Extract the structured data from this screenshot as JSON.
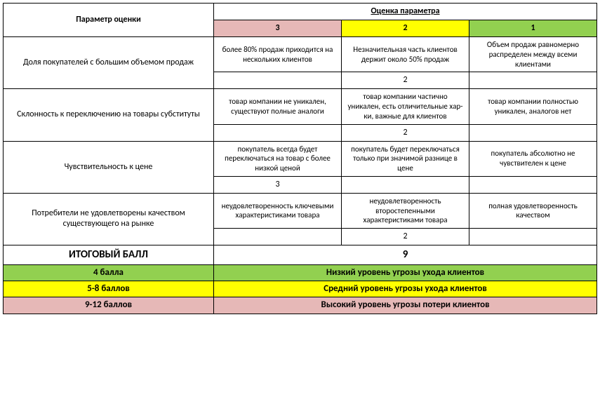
{
  "colors": {
    "pink": "#e6b8b7",
    "yellow": "#ffff00",
    "green": "#92d050",
    "white": "#ffffff",
    "black": "#000000"
  },
  "header": {
    "param_title": "Параметр оценки",
    "rating_title": "Оценка параметра",
    "cols": {
      "c3": "3",
      "c2": "2",
      "c1": "1"
    }
  },
  "rows": {
    "r1": {
      "param": "Доля покупателей с большим объемом продаж",
      "v3": "более 80% продаж приходится на нескольких клиентов",
      "v2": "Незначительная часть клиентов держит около 50% продаж",
      "v1": "Объем продаж равномерно распределен между всеми клиентами",
      "score": "2"
    },
    "r2": {
      "param": "Склонность к переключению на товары субституты",
      "v3": "товар компании не уникален, существуют полные аналоги",
      "v2": "товар компании частично уникален, есть отличительные хар-ки, важные для клиентов",
      "v1": "товар компании полностью уникален, аналогов нет",
      "score": "2"
    },
    "r3": {
      "param": "Чувствительность к цене",
      "v3": "покупатель всегда будет переключаться на товар с более низкой ценой",
      "v2": "покупатель будет переключаться только при значимой разнице в цене",
      "v1": "покупатель абсолютно не чувствителен к цене",
      "score": "3"
    },
    "r4": {
      "param": "Потребители не удовлетворены качеством существующего на рынке",
      "v3": "неудовлетворенность ключевыми характеристиками товара",
      "v2": "неудовлетворенность второстепенными характеристиками товара",
      "v1": "полная удовлетворенность качеством",
      "score": "2"
    }
  },
  "total": {
    "label": "ИТОГОВЫЙ БАЛЛ",
    "value": "9"
  },
  "legend": {
    "l1": {
      "range": "4 балла",
      "text": "Низкий уровень угрозы ухода клиентов"
    },
    "l2": {
      "range": "5-8 баллов",
      "text": "Средний уровень угрозы ухода клиентов"
    },
    "l3": {
      "range": "9-12 баллов",
      "text": "Высокий уровень угрозы потери клиентов"
    }
  }
}
